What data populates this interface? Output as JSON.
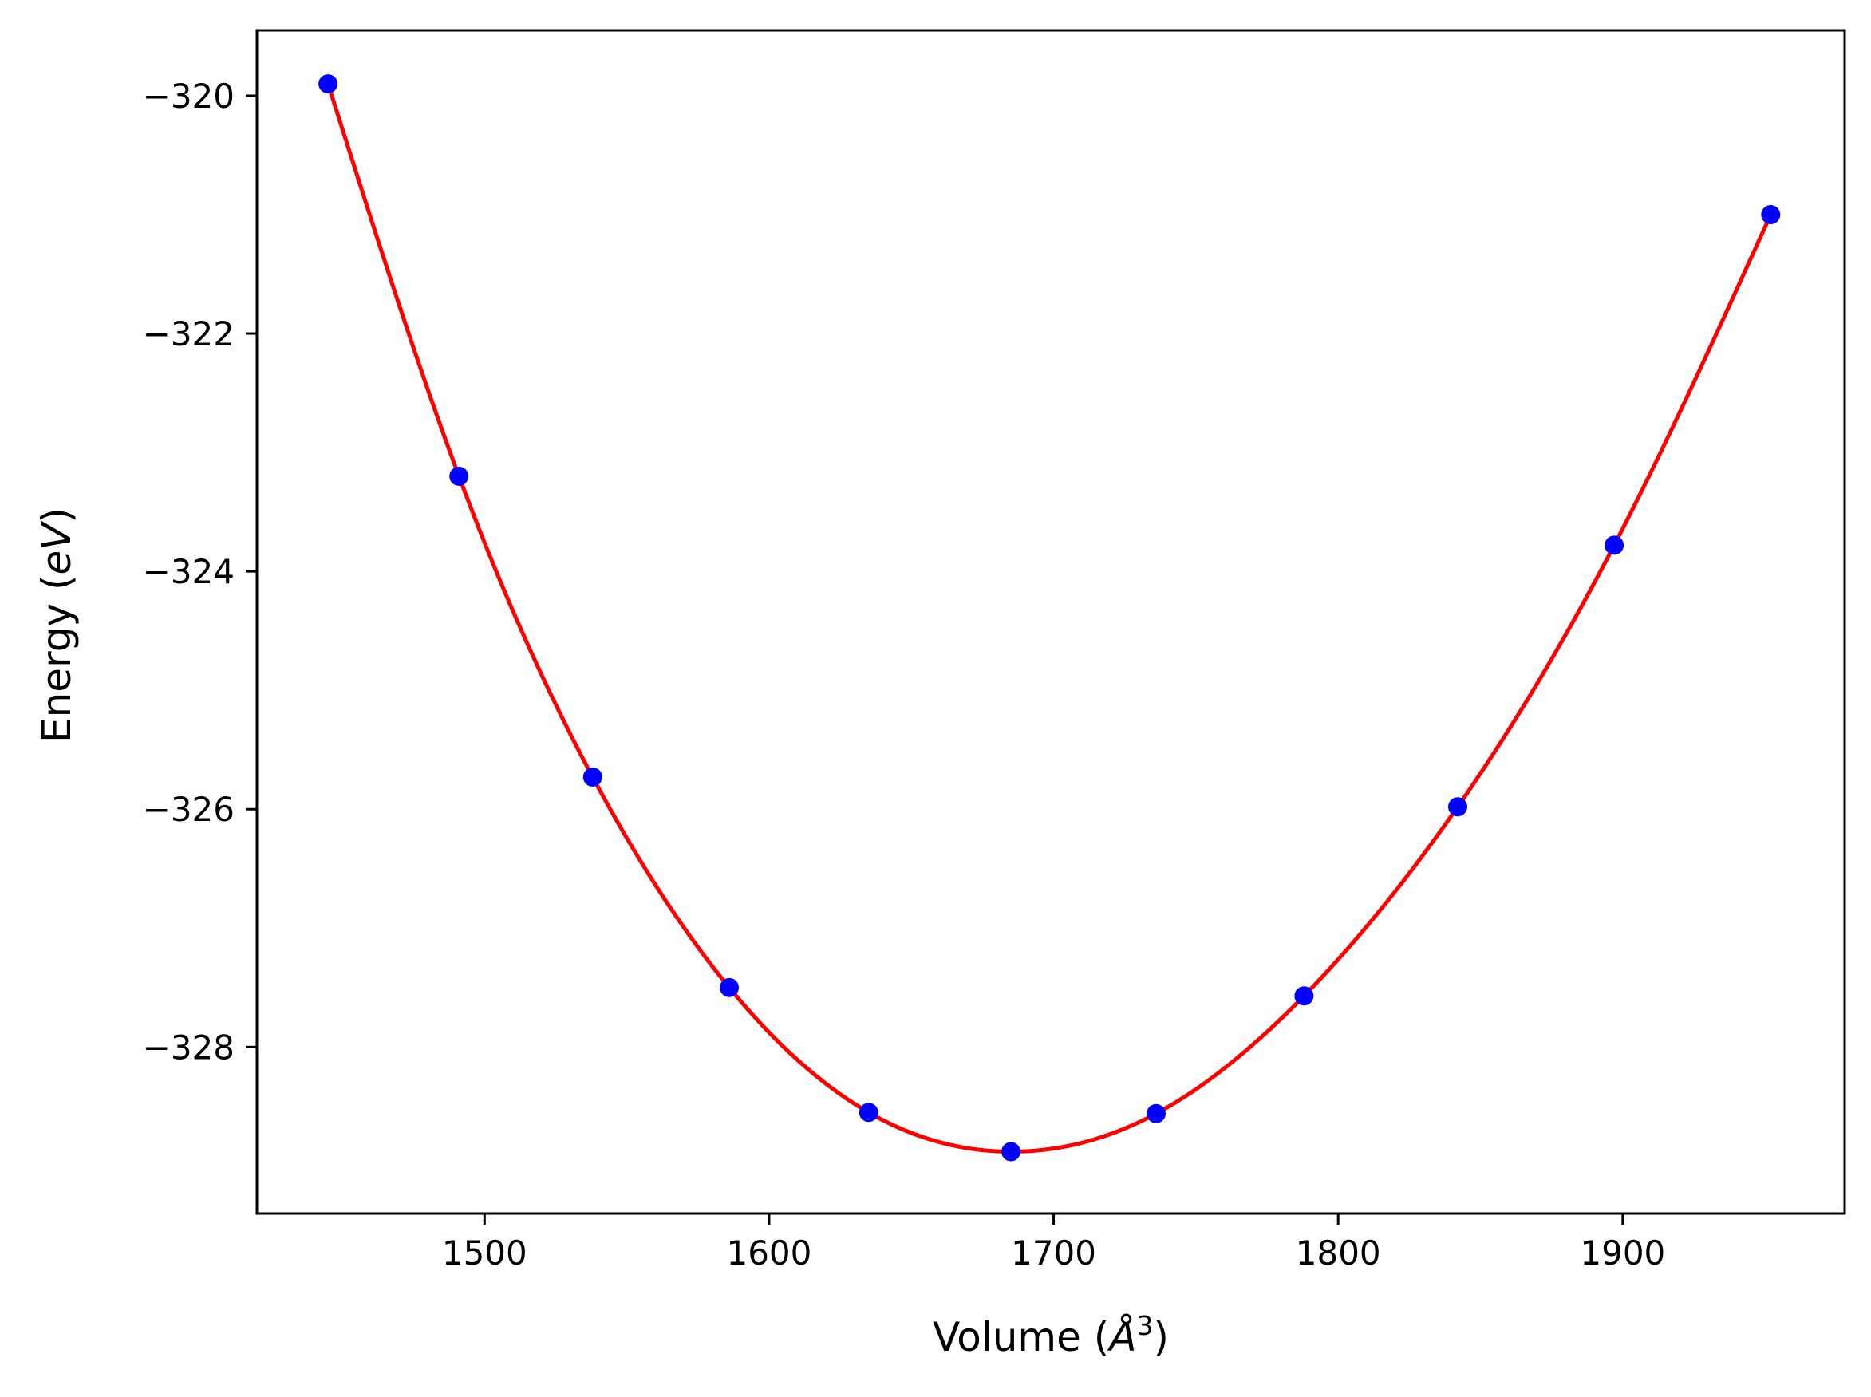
{
  "chart_data": {
    "type": "scatter",
    "title": "",
    "xlabel": {
      "main": "Volume (",
      "symbol": "Å",
      "sup": "3",
      "close": ")"
    },
    "ylabel": {
      "main": "Energy (",
      "symbol": "eV",
      "close": ")"
    },
    "xlim": [
      1420,
      1978
    ],
    "ylim": [
      -329.4,
      -319.45
    ],
    "xticks": [
      1500,
      1600,
      1700,
      1800,
      1900
    ],
    "xtick_labels": [
      "1500",
      "1600",
      "1700",
      "1800",
      "1900"
    ],
    "yticks": [
      -320,
      -322,
      -324,
      -326,
      -328
    ],
    "ytick_labels": [
      "−320",
      "−322",
      "−324",
      "−326",
      "−328"
    ],
    "grid": false,
    "series": [
      {
        "kind": "points",
        "color": "#0000ff",
        "x": [
          1445,
          1491,
          1538,
          1586,
          1635,
          1685,
          1736,
          1788,
          1842,
          1897,
          1952
        ],
        "y": [
          -319.9,
          -323.2,
          -325.73,
          -327.5,
          -328.55,
          -328.88,
          -328.56,
          -327.57,
          -325.98,
          -323.78,
          -321.0
        ]
      },
      {
        "kind": "fit-curve",
        "color": "#ff0000",
        "x": [
          1445,
          1491,
          1538,
          1586,
          1635,
          1685,
          1736,
          1788,
          1842,
          1897,
          1952
        ],
        "y": [
          -319.9,
          -323.2,
          -325.73,
          -327.5,
          -328.55,
          -328.88,
          -328.56,
          -327.57,
          -325.98,
          -323.78,
          -321.0
        ]
      }
    ]
  }
}
